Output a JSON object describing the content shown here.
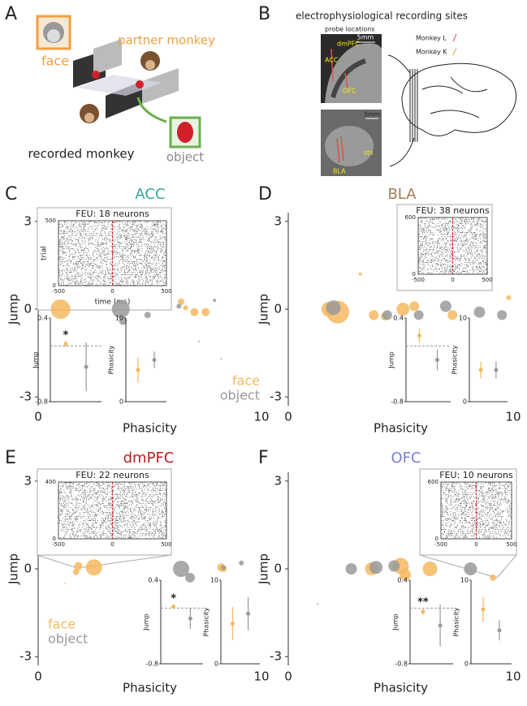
{
  "panel_labels": [
    "A",
    "B",
    "C",
    "D",
    "E",
    "F"
  ],
  "panel_a": {
    "face": "face",
    "partner": "partner monkey",
    "recorded": "recorded monkey",
    "object": "object"
  },
  "panel_b": {
    "title": "electrophysiological recording sites",
    "probe": "probe locations",
    "scale1": "5mm",
    "dmpfc": "dmPFC",
    "acc": "ACC",
    "ofc": "OFC",
    "scale2": "3mm",
    "sts": "sts",
    "bla": "BLA",
    "monkey_l": "Monkey L",
    "monkey_k": "Monkey K"
  },
  "chart_data": [
    {
      "type": "scatter",
      "title": "ACC",
      "title_color": "#3aa597",
      "xlabel": "Phasicity",
      "ylabel": "Jump",
      "xlim": [
        0,
        10
      ],
      "ylim": [
        -3.3,
        3.3
      ],
      "xticks": [
        0,
        10
      ],
      "yticks": [
        3,
        0,
        -3
      ],
      "legend": "lower right",
      "series": [
        {
          "name": "face",
          "color": "#f4b860",
          "x": [
            1,
            6.4,
            6.6,
            7.0,
            7.5
          ],
          "values": [
            0,
            0.25,
            0.05,
            -0.1,
            -0.1
          ],
          "sizes": [
            12,
            4,
            3,
            5,
            5
          ]
        },
        {
          "name": "object",
          "color": "#9a9a9a",
          "x": [
            3.7,
            3.8,
            4.9,
            6.3,
            7.9,
            7.2,
            8.2
          ],
          "values": [
            0,
            -0.4,
            -0.2,
            0.1,
            0.3,
            -1.1,
            -1.7
          ],
          "sizes": [
            11,
            5,
            4,
            3,
            2,
            1,
            1
          ]
        }
      ],
      "raster": {
        "title": "FEU: 18 neurons",
        "ylabel": "trial",
        "xlabel": "time (ms)",
        "xlim": [
          -500,
          500
        ],
        "xticks": [
          -500,
          0,
          500
        ],
        "ylim": [
          0,
          500
        ],
        "yticks": [
          0,
          500
        ]
      },
      "jump": {
        "ylabel": "Jump",
        "ylim": [
          -0.8,
          0.4
        ],
        "yticks": [
          0.4,
          -0.8
        ],
        "values": [
          0.03,
          -0.3
        ],
        "errors": [
          0.04,
          0.35
        ],
        "annotation": "*"
      },
      "phasicity": {
        "ylabel": "Phasicity",
        "ylim": [
          0,
          10
        ],
        "yticks": [
          10,
          0
        ],
        "values": [
          3.8,
          5.0
        ],
        "errors": [
          1.5,
          1
        ]
      }
    },
    {
      "type": "scatter",
      "title": "BLA",
      "title_color": "#a67c52",
      "xlabel": "Phasicity",
      "ylabel": "Jump",
      "xlim": [
        0,
        10
      ],
      "ylim": [
        -3.3,
        3.3
      ],
      "xticks": [
        0,
        10
      ],
      "yticks": [
        3,
        0,
        -3
      ],
      "series": [
        {
          "color": "#f4b860",
          "x": [
            2.2,
            1.8,
            3.2,
            3.8,
            5.1,
            5.6,
            7.3,
            9.8,
            4.3
          ],
          "values": [
            -0.1,
            0,
            1.2,
            -0.2,
            0,
            0.1,
            -0.2,
            0.4,
            -0.25
          ],
          "sizes": [
            14,
            9,
            2,
            6,
            8,
            6,
            6,
            3,
            5
          ]
        },
        {
          "color": "#9a9a9a",
          "x": [
            2,
            4.4,
            5.8,
            7.0,
            8.5,
            9.5
          ],
          "values": [
            0.05,
            -0.2,
            -0.2,
            0.1,
            -0.1,
            -0.2
          ],
          "sizes": [
            9,
            6,
            6,
            7,
            7,
            6
          ]
        }
      ],
      "raster": {
        "title": "FEU: 38 neurons",
        "xlim": [
          -500,
          500
        ],
        "xticks": [
          -500,
          0,
          500
        ],
        "ylim": [
          0,
          600
        ],
        "yticks": [
          0,
          600
        ]
      },
      "jump": {
        "ylabel": "Jump",
        "ylim": [
          -0.8,
          0.4
        ],
        "yticks": [
          0.4,
          -0.8
        ],
        "values": [
          0.15,
          -0.2
        ],
        "errors": [
          0.1,
          0.15
        ]
      },
      "phasicity": {
        "ylabel": "Phasicity",
        "ylim": [
          0,
          10
        ],
        "yticks": [
          10,
          0
        ],
        "values": [
          3.8,
          3.8
        ],
        "errors": [
          1,
          1
        ]
      }
    },
    {
      "type": "scatter",
      "title": "dmPFC",
      "title_color": "#b22222",
      "xlabel": "Phasicity",
      "ylabel": "Jump",
      "xlim": [
        0,
        10
      ],
      "ylim": [
        -3.3,
        3.3
      ],
      "xticks": [
        0,
        10
      ],
      "yticks": [
        3,
        0,
        -3
      ],
      "legend": "lower left",
      "series": [
        {
          "name": "face",
          "color": "#f4b860",
          "x": [
            1.7,
            1.8,
            2.5,
            8.2,
            8.3,
            1.2
          ],
          "values": [
            -0.1,
            0.1,
            0.05,
            0.05,
            0,
            -0.5
          ],
          "sizes": [
            4,
            5,
            10,
            5,
            4,
            1
          ]
        },
        {
          "name": "object",
          "color": "#9a9a9a",
          "x": [
            6.4,
            6.8,
            9.1,
            8.3
          ],
          "values": [
            0,
            -0.3,
            0.2,
            0.05
          ],
          "sizes": [
            10,
            6,
            3,
            3
          ]
        }
      ],
      "raster": {
        "title": "FEU: 22 neurons",
        "xlim": [
          -500,
          500
        ],
        "xticks": [
          -500,
          0,
          500
        ],
        "ylim": [
          0,
          400
        ],
        "yticks": [
          0,
          400
        ]
      },
      "jump": {
        "ylabel": "Jump",
        "ylim": [
          -0.8,
          0.4
        ],
        "yticks": [
          0.4,
          -0.8
        ],
        "values": [
          0.02,
          -0.15
        ],
        "errors": [
          0.03,
          0.15
        ],
        "annotation": "*"
      },
      "phasicity": {
        "ylabel": "Phasicity",
        "ylim": [
          0,
          10
        ],
        "yticks": [
          10,
          0
        ],
        "values": [
          4.8,
          6.0
        ],
        "errors": [
          2,
          2
        ]
      }
    },
    {
      "type": "scatter",
      "title": "OFC",
      "title_color": "#7a80c8",
      "xlabel": "Phasicity",
      "ylabel": "Jump",
      "xlim": [
        0,
        10
      ],
      "ylim": [
        -3.3,
        3.3
      ],
      "xticks": [
        0,
        10
      ],
      "yticks": [
        3,
        0,
        -3
      ],
      "series": [
        {
          "color": "#f4b860",
          "x": [
            3.7,
            5,
            5.2,
            6.3,
            9.1
          ],
          "values": [
            0,
            0.1,
            -0.2,
            0,
            -0.3
          ],
          "sizes": [
            8,
            10,
            7,
            9,
            4
          ]
        },
        {
          "color": "#9a9a9a",
          "x": [
            2.8,
            3.9,
            4.7,
            8.1,
            1.3
          ],
          "values": [
            0,
            0.05,
            0.1,
            0,
            -1.2
          ],
          "sizes": [
            7,
            8,
            7,
            8,
            1
          ]
        }
      ],
      "raster": {
        "title": "FEU: 10 neurons",
        "xlim": [
          -500,
          500
        ],
        "xticks": [
          -500,
          0,
          500
        ],
        "ylim": [
          0,
          600
        ],
        "yticks": [
          0,
          600
        ]
      },
      "jump": {
        "ylabel": "Jump",
        "ylim": [
          -0.8,
          0.4
        ],
        "yticks": [
          0.4,
          -0.8
        ],
        "values": [
          -0.05,
          -0.25
        ],
        "errors": [
          0.05,
          0.3
        ],
        "annotation": "**"
      },
      "phasicity": {
        "ylabel": "Phasicity",
        "ylim": [
          0,
          10
        ],
        "yticks": [
          10,
          0
        ],
        "values": [
          6.5,
          4.0
        ],
        "errors": [
          1.5,
          1.2
        ]
      }
    }
  ]
}
